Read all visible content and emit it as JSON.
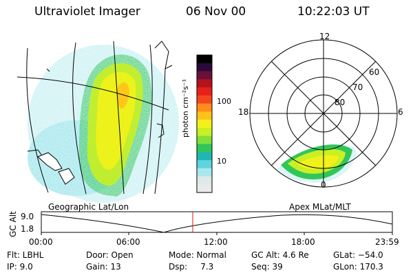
{
  "header": {
    "instrument": "Ultraviolet Imager",
    "date": "06 Nov 00",
    "time": "10:22:03 UT"
  },
  "colorbar": {
    "unit_label": "photon cm⁻²s⁻¹",
    "ticks": [
      "100",
      "10"
    ],
    "colors": [
      "#000000",
      "#2a0a3a",
      "#6a0e3a",
      "#b2141c",
      "#e8201a",
      "#f4461e",
      "#ff8c1a",
      "#ffc21a",
      "#f2f21a",
      "#c8f024",
      "#7fe03c",
      "#32c65a",
      "#1fb7b1",
      "#5ed4de",
      "#a8e8ec",
      "#dfe9ea",
      "#eaeaea"
    ]
  },
  "left_map": {
    "label": "Geographic Lat/Lon"
  },
  "polar_plot": {
    "label": "Apex MLat/MLT",
    "mlt_labels": {
      "top": "12",
      "left": "18",
      "right": "6",
      "bottom": "0"
    },
    "lat_labels": [
      "60",
      "70",
      "80"
    ]
  },
  "altitude_panel": {
    "ylabel": "GC Alt",
    "yticks": [
      "9.0",
      "1.8"
    ],
    "xticks": [
      "00:00",
      "06:00",
      "12:00",
      "18:00",
      "23:59"
    ],
    "marker_color": "#e01010"
  },
  "info": {
    "flt": "Flt: LBHL",
    "ip": "IP:  9.0",
    "door": "Door: Open",
    "gain": "Gain: 13",
    "mode": "Mode: Normal",
    "dsp": "Dsp:     7.3",
    "gcalt": "GC Alt: 4.6 Re",
    "seq": "Seq: 39",
    "glat": "GLat: −54.0",
    "glon": "GLon: 170.3"
  }
}
